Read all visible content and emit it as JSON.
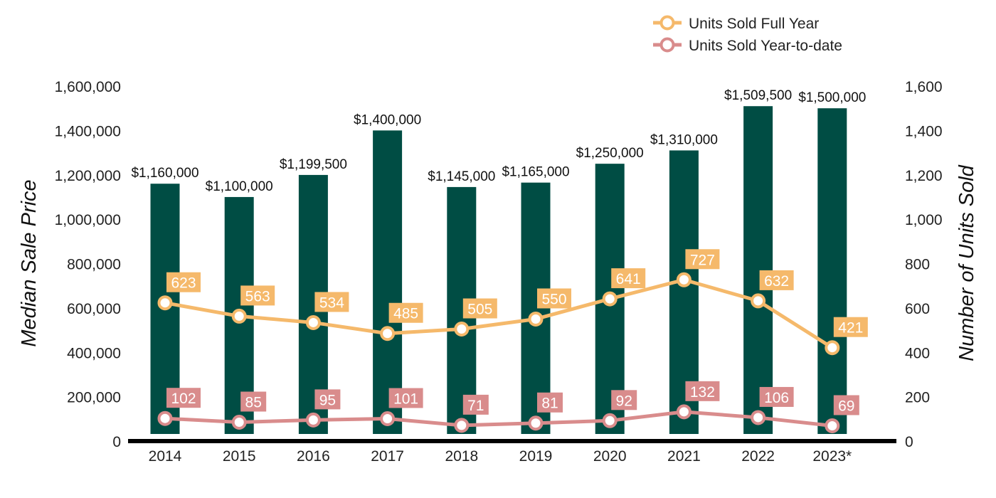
{
  "chart_data": {
    "type": "bar",
    "categories": [
      "2014",
      "2015",
      "2016",
      "2017",
      "2018",
      "2019",
      "2020",
      "2021",
      "2022",
      "2023*"
    ],
    "bars": {
      "values": [
        1160000,
        1100000,
        1199500,
        1400000,
        1145000,
        1165000,
        1250000,
        1310000,
        1509500,
        1500000
      ],
      "labels": [
        "$1,160,000",
        "$1,100,000",
        "$1,199,500",
        "$1,400,000",
        "$1,145,000",
        "$1,165,000",
        "$1,250,000",
        "$1,310,000",
        "$1,509,500",
        "$1,500,000"
      ],
      "axis": "left",
      "color": "#004d44"
    },
    "series": [
      {
        "name": "Units Sold Full Year",
        "type": "line",
        "axis": "right",
        "color": "#f5b96b",
        "values": [
          623,
          563,
          534,
          485,
          505,
          550,
          641,
          727,
          632,
          421
        ]
      },
      {
        "name": "Units Sold Year-to-date",
        "type": "line",
        "axis": "right",
        "color": "#d98c8c",
        "values": [
          102,
          85,
          95,
          101,
          71,
          81,
          92,
          132,
          106,
          69
        ]
      }
    ],
    "ylabel": "Median Sale Price",
    "y2label": "Number of Units Sold",
    "ylim": [
      0,
      1600000
    ],
    "y2lim": [
      0,
      1600
    ],
    "yticks": [
      "0",
      "200,000",
      "400,000",
      "600,000",
      "800,000",
      "1,000,000",
      "1,200,000",
      "1,400,000",
      "1,600,000"
    ],
    "y2ticks": [
      "0",
      "200",
      "400",
      "600",
      "800",
      "1,000",
      "1,200",
      "1,400",
      "1,600"
    ],
    "legend_position": "top-right",
    "grid": false
  }
}
